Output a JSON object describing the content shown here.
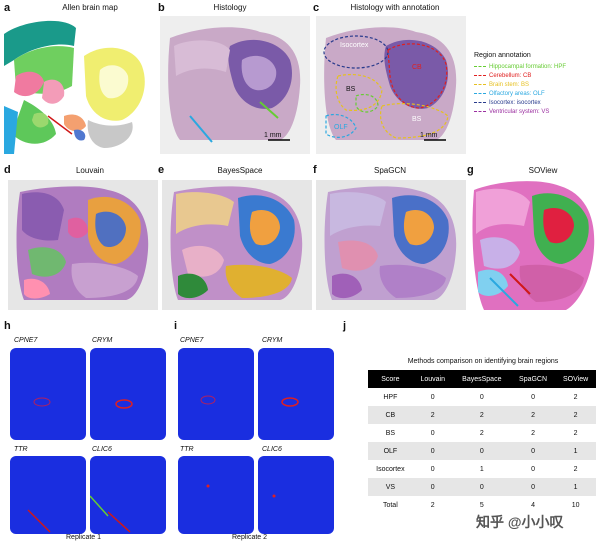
{
  "panels": {
    "a": {
      "letter": "a",
      "title": "Allen brain map"
    },
    "b": {
      "letter": "b",
      "title": "Histology",
      "scale": "1 mm"
    },
    "c": {
      "letter": "c",
      "title": "Histology with annotation",
      "scale": "1 mm",
      "region_labels": [
        "Isocortex",
        "CB",
        "BS",
        "OLF",
        "BS"
      ]
    },
    "d": {
      "letter": "d",
      "title": "Louvain"
    },
    "e": {
      "letter": "e",
      "title": "BayesSpace"
    },
    "f": {
      "letter": "f",
      "title": "SpaGCN"
    },
    "g": {
      "letter": "g",
      "title": "SOView"
    },
    "h": {
      "letter": "h",
      "genes": [
        "CPNE7",
        "CRYM",
        "TTR",
        "CLIC6"
      ],
      "caption": "Replicate 1"
    },
    "i": {
      "letter": "i",
      "genes": [
        "CPNE7",
        "CRYM",
        "TTR",
        "CLIC6"
      ],
      "caption": "Replicate 2"
    },
    "j": {
      "letter": "j"
    }
  },
  "legend": {
    "title": "Region annotation",
    "items": [
      {
        "label": "Hippocampal formation: HPF",
        "color": "#66cc33"
      },
      {
        "label": "Cerebellum: CB",
        "color": "#e02020"
      },
      {
        "label": "Brain stem: BS",
        "color": "#e6c020"
      },
      {
        "label": "Olfactory areas: OLF",
        "color": "#2aa8e0"
      },
      {
        "label": "Isocortex: isocortex",
        "color": "#283a8c"
      },
      {
        "label": "Ventricular system: VS",
        "color": "#9b2fa0"
      }
    ]
  },
  "table": {
    "title": "Methods comparison on identifying brain regions",
    "headers": [
      "Score",
      "Louvain",
      "BayesSpace",
      "SpaGCN",
      "SOView"
    ],
    "rows": [
      [
        "HPF",
        "0",
        "0",
        "0",
        "2"
      ],
      [
        "CB",
        "2",
        "2",
        "2",
        "2"
      ],
      [
        "BS",
        "0",
        "2",
        "2",
        "2"
      ],
      [
        "OLF",
        "0",
        "0",
        "0",
        "1"
      ],
      [
        "Isocortex",
        "0",
        "1",
        "0",
        "2"
      ],
      [
        "VS",
        "0",
        "0",
        "0",
        "1"
      ],
      [
        "Total",
        "2",
        "5",
        "4",
        "10"
      ]
    ]
  },
  "watermark": "知乎 @小小叹"
}
